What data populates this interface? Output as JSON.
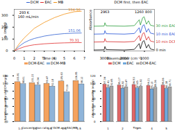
{
  "chart_data": [
    {
      "type": "line",
      "x": [
        0,
        0.5,
        1,
        1.5,
        2,
        3,
        4,
        5,
        6,
        6.7
      ],
      "series": [
        {
          "name": "DCM",
          "color": "#2e5fd0",
          "values": [
            0,
            40,
            70,
            90,
            105,
            125,
            138,
            146,
            150,
            151.06
          ]
        },
        {
          "name": "EAC",
          "color": "#e02b2b",
          "values": [
            0,
            20,
            35,
            45,
            52,
            60,
            65,
            68,
            70,
            70.31
          ]
        },
        {
          "name": "MB",
          "color": "#f29111",
          "values": [
            0,
            60,
            110,
            150,
            190,
            240,
            280,
            310,
            330,
            334.36
          ]
        }
      ],
      "xlabel": "Time (h)",
      "ylabel": "qₜ (mg/g)",
      "xlim": [
        0,
        7
      ],
      "xticks": [
        0,
        1,
        2,
        3,
        4,
        5,
        6,
        7
      ],
      "ylim": [
        0,
        350
      ],
      "yticks": [
        0,
        100,
        200,
        300
      ],
      "legend": "top",
      "annotations": [
        {
          "text": "334.36",
          "x": 6.0,
          "y": 345,
          "color": "#f29111"
        },
        {
          "text": "151.06",
          "x": 6.0,
          "y": 172,
          "color": "#2e5fd0"
        },
        {
          "text": "70.31",
          "x": 6.0,
          "y": 90,
          "color": "#e02b2b"
        },
        {
          "text": "293 K",
          "x": 1.0,
          "y": 320
        },
        {
          "text": "160 mL/min",
          "x": 1.4,
          "y": 285
        }
      ]
    },
    {
      "type": "line",
      "title": "DCM first, then EAC",
      "x": [
        3500,
        3000,
        2963,
        2900,
        2000,
        1500,
        1260,
        1200,
        1090,
        1017,
        900,
        800,
        700,
        500
      ],
      "series": [
        {
          "name": "0 min",
          "color": "#000000",
          "values": [
            0.1,
            0.12,
            0.45,
            0.14,
            0.1,
            0.16,
            0.75,
            0.22,
            0.95,
            1.05,
            0.3,
            0.65,
            0.2,
            0.1
          ]
        },
        {
          "name": "10 min DCM",
          "color": "#d62728",
          "values": [
            0.9,
            0.92,
            1.25,
            0.94,
            0.9,
            0.96,
            1.55,
            1.02,
            1.75,
            1.85,
            1.1,
            1.45,
            1.0,
            0.9
          ]
        },
        {
          "name": "10 min EAC",
          "color": "#1f4fd6",
          "values": [
            1.7,
            1.72,
            2.05,
            1.74,
            1.7,
            1.76,
            2.35,
            1.82,
            2.55,
            2.65,
            1.9,
            2.25,
            1.8,
            1.7
          ]
        },
        {
          "name": "30 min EAC",
          "color": "#2a9d3a",
          "values": [
            2.5,
            2.52,
            2.85,
            2.54,
            2.5,
            2.56,
            3.15,
            2.62,
            3.35,
            3.45,
            2.7,
            3.05,
            2.6,
            2.5
          ]
        }
      ],
      "xlabel": "Wavenumber (cm⁻¹)",
      "ylabel": "Absorbance",
      "xlim": [
        3500,
        500
      ],
      "xticks": [
        3000,
        2000,
        1000
      ],
      "ylim": [
        0,
        4.2
      ],
      "tick_labels": "x",
      "annotations": [
        {
          "text": "2963",
          "x": 2963,
          "y": 3.95
        },
        {
          "text": "1260",
          "x": 1260,
          "y": 3.95
        },
        {
          "text": "800",
          "x": 800,
          "y": 3.95
        }
      ]
    },
    {
      "type": "bar",
      "categories": [
        "1:1",
        "1:2",
        "1:3",
        "1:4",
        "1:5"
      ],
      "series": [
        {
          "name": "DCM-EAC",
          "color": "#f5a25d",
          "values": [
            103.81,
            101.22,
            99.47,
            105.63,
            106.95
          ]
        },
        {
          "name": "DCM-MB",
          "color": "#8fb4d9",
          "values": [
            98.61,
            95.34,
            92.18,
            77.09,
            98.12
          ]
        }
      ],
      "xlabel": "Concentration ratio of DCM and EAC/MB",
      "ylabel": "Adsorption quantity of DCM (mg/g)",
      "ylim": [
        0,
        120
      ],
      "yticks": [
        0,
        20,
        40,
        60,
        80,
        100,
        120
      ],
      "legend": "top",
      "data_labels": true
    },
    {
      "type": "bar",
      "categories": [
        1,
        2,
        3,
        4,
        5
      ],
      "series": [
        {
          "name": "DCM",
          "color": "#e06666",
          "values": [
            97.34,
            95.27,
            96.53,
            94.21,
            95.06
          ]
        },
        {
          "name": "EAC",
          "color": "#6fa8dc",
          "values": [
            88.41,
            86.92,
            87.65,
            85.13,
            86.38
          ]
        },
        {
          "name": "DCM-EAC",
          "color": "#a6a6a6",
          "values": [
            92.65,
            90.47,
            91.82,
            89.36,
            90.71
          ]
        }
      ],
      "xlabel": "Times",
      "ylabel": "Adsorption Quantity (mg/g)",
      "ylim": [
        0,
        120
      ],
      "yticks": [
        0,
        20,
        40,
        60,
        80,
        100,
        120
      ],
      "legend": "top",
      "data_labels": true
    }
  ]
}
